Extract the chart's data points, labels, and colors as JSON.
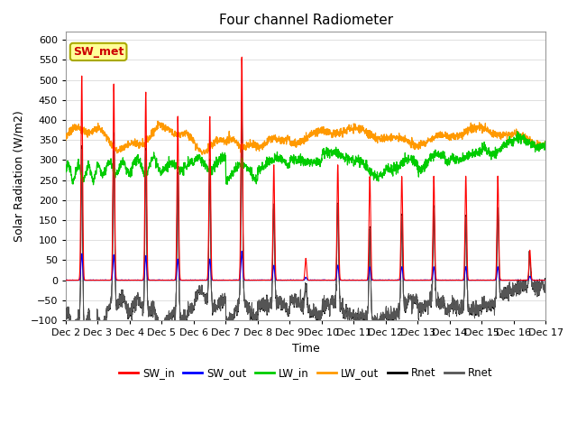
{
  "title": "Four channel Radiometer",
  "xlabel": "Time",
  "ylabel": "Solar Radiation (W/m2)",
  "ylim": [
    -100,
    620
  ],
  "yticks": [
    -100,
    -50,
    0,
    50,
    100,
    150,
    200,
    250,
    300,
    350,
    400,
    450,
    500,
    550,
    600
  ],
  "xtick_labels": [
    "Dec 2",
    "Dec 3",
    "Dec 4",
    "Dec 5",
    "Dec 6",
    "Dec 7",
    "Dec 8",
    "Dec 9",
    "Dec 10",
    "Dec 11",
    "Dec 12",
    "Dec 13",
    "Dec 14",
    "Dec 15",
    "Dec 16",
    "Dec 17"
  ],
  "annotation_text": "SW_met",
  "annotation_color": "#cc0000",
  "annotation_bg": "#ffff99",
  "annotation_edgecolor": "#aaaa00",
  "colors": {
    "SW_in": "#ff0000",
    "SW_out": "#0000ff",
    "LW_in": "#00cc00",
    "LW_out": "#ff9900",
    "Rnet_black": "#000000",
    "Rnet_dark": "#555555"
  },
  "legend_entries": [
    "SW_in",
    "SW_out",
    "LW_in",
    "LW_out",
    "Rnet",
    "Rnet"
  ],
  "legend_colors": [
    "#ff0000",
    "#0000ff",
    "#00cc00",
    "#ff9900",
    "#000000",
    "#555555"
  ],
  "grid_color": "#e0e0e0",
  "background": "#ffffff"
}
